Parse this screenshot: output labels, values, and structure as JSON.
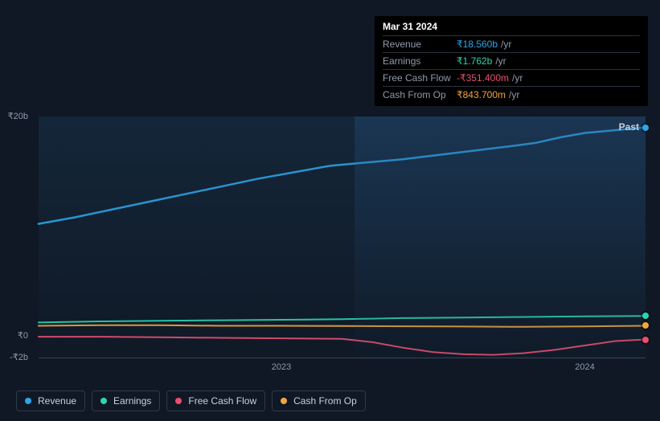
{
  "tooltip": {
    "date": "Mar 31 2024",
    "rows": [
      {
        "label": "Revenue",
        "value": "₹18.560b",
        "unit": "/yr",
        "color": "#2ba7e8"
      },
      {
        "label": "Earnings",
        "value": "₹1.762b",
        "unit": "/yr",
        "color": "#2ad6b1"
      },
      {
        "label": "Free Cash Flow",
        "value": "-₹351.400m",
        "unit": "/yr",
        "color": "#e84f6e"
      },
      {
        "label": "Cash From Op",
        "value": "₹843.700m",
        "unit": "/yr",
        "color": "#f2a63c"
      }
    ]
  },
  "chart": {
    "type": "line",
    "background_color": "#0f1824",
    "grid_color": "#3a4454",
    "text_color": "#8f9aad",
    "label_fontsize": 11,
    "y_ticks": [
      {
        "label": "₹20b",
        "value": 20
      },
      {
        "label": "₹0",
        "value": 0
      },
      {
        "label": "-₹2b",
        "value": -2
      }
    ],
    "y_min": -2,
    "y_max": 20,
    "x_min": 0,
    "x_max": 100,
    "x_ticks": [
      {
        "label": "2023",
        "value": 40
      },
      {
        "label": "2024",
        "value": 90
      }
    ],
    "shade_split": 52,
    "past_label": "Past",
    "end_dots_x": 100,
    "series": [
      {
        "name": "Revenue",
        "color": "#2ba7e8",
        "width": 2.5,
        "points": [
          [
            0,
            10.2
          ],
          [
            6,
            10.8
          ],
          [
            12,
            11.5
          ],
          [
            18,
            12.2
          ],
          [
            24,
            12.9
          ],
          [
            30,
            13.6
          ],
          [
            36,
            14.3
          ],
          [
            42,
            14.9
          ],
          [
            48,
            15.5
          ],
          [
            54,
            15.8
          ],
          [
            60,
            16.1
          ],
          [
            66,
            16.5
          ],
          [
            72,
            16.9
          ],
          [
            78,
            17.3
          ],
          [
            82,
            17.6
          ],
          [
            86,
            18.1
          ],
          [
            90,
            18.5
          ],
          [
            94,
            18.7
          ],
          [
            100,
            19.0
          ]
        ]
      },
      {
        "name": "Earnings",
        "color": "#2ad6b1",
        "width": 2,
        "points": [
          [
            0,
            1.2
          ],
          [
            10,
            1.3
          ],
          [
            20,
            1.35
          ],
          [
            30,
            1.4
          ],
          [
            40,
            1.45
          ],
          [
            50,
            1.5
          ],
          [
            55,
            1.55
          ],
          [
            60,
            1.6
          ],
          [
            70,
            1.65
          ],
          [
            80,
            1.7
          ],
          [
            90,
            1.76
          ],
          [
            100,
            1.8
          ]
        ]
      },
      {
        "name": "Cash From Op",
        "color": "#f2a63c",
        "width": 2,
        "points": [
          [
            0,
            0.9
          ],
          [
            10,
            0.95
          ],
          [
            20,
            0.95
          ],
          [
            30,
            0.9
          ],
          [
            40,
            0.9
          ],
          [
            50,
            0.88
          ],
          [
            60,
            0.85
          ],
          [
            70,
            0.83
          ],
          [
            80,
            0.8
          ],
          [
            90,
            0.84
          ],
          [
            100,
            0.9
          ]
        ]
      },
      {
        "name": "Free Cash Flow",
        "color": "#e84f6e",
        "width": 2,
        "points": [
          [
            0,
            -0.1
          ],
          [
            10,
            -0.1
          ],
          [
            20,
            -0.15
          ],
          [
            30,
            -0.2
          ],
          [
            40,
            -0.25
          ],
          [
            50,
            -0.3
          ],
          [
            55,
            -0.6
          ],
          [
            60,
            -1.1
          ],
          [
            65,
            -1.5
          ],
          [
            70,
            -1.7
          ],
          [
            75,
            -1.75
          ],
          [
            80,
            -1.6
          ],
          [
            85,
            -1.3
          ],
          [
            90,
            -0.9
          ],
          [
            95,
            -0.5
          ],
          [
            100,
            -0.35
          ]
        ]
      }
    ]
  },
  "legend": [
    {
      "label": "Revenue",
      "color": "#2ba7e8"
    },
    {
      "label": "Earnings",
      "color": "#2ad6b1"
    },
    {
      "label": "Free Cash Flow",
      "color": "#e84f6e"
    },
    {
      "label": "Cash From Op",
      "color": "#f2a63c"
    }
  ]
}
